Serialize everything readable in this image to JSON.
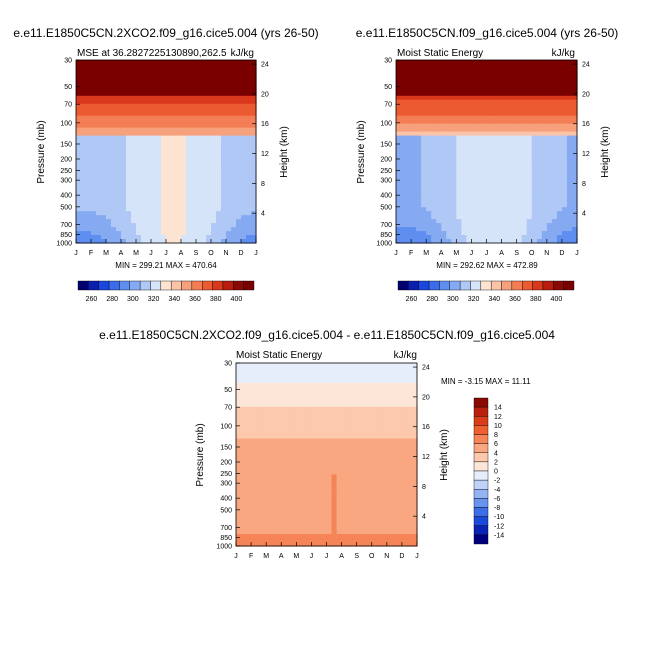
{
  "chart_data": [
    {
      "type": "heatmap",
      "title": "e.e11.E1850C5CN.2XCO2.f09_g16.cice5.004 (yrs 26-50)",
      "left_label": "MSE at 36.2827225130890,262.5",
      "right_label": "kJ/kg",
      "ylabel": "Pressure (mb)",
      "y2label": "Height (km)",
      "minmax_text": "MIN = 299.21  MAX = 470.64",
      "x_ticks": [
        "J",
        "F",
        "M",
        "A",
        "M",
        "J",
        "J",
        "A",
        "S",
        "O",
        "N",
        "D",
        "J"
      ],
      "y_ticks": [
        "30",
        "50",
        "70",
        "100",
        "150",
        "200",
        "250",
        "300",
        "400",
        "500",
        "700",
        "850",
        "1000"
      ],
      "y2_ticks": [
        "24",
        "20",
        "16",
        "12",
        "8",
        "4"
      ],
      "colorbar_labels": [
        "260",
        "280",
        "300",
        "320",
        "340",
        "360",
        "380",
        "400"
      ],
      "min": 299.21,
      "max": 470.64
    },
    {
      "type": "heatmap",
      "title": "e.e11.E1850C5CN.f09_g16.cice5.004 (yrs 26-50)",
      "left_label": "Moist Static Energy",
      "right_label": "kJ/kg",
      "ylabel": "Pressure (mb)",
      "y2label": "Height (km)",
      "minmax_text": "MIN = 292.62  MAX = 472.89",
      "x_ticks": [
        "J",
        "F",
        "M",
        "A",
        "M",
        "J",
        "J",
        "A",
        "S",
        "O",
        "N",
        "D",
        "J"
      ],
      "y_ticks": [
        "30",
        "50",
        "70",
        "100",
        "150",
        "200",
        "250",
        "300",
        "400",
        "500",
        "700",
        "850",
        "1000"
      ],
      "y2_ticks": [
        "24",
        "20",
        "16",
        "12",
        "8",
        "4"
      ],
      "colorbar_labels": [
        "260",
        "280",
        "300",
        "320",
        "340",
        "360",
        "380",
        "400"
      ],
      "min": 292.62,
      "max": 472.89
    },
    {
      "type": "heatmap",
      "title": "e.e11.E1850C5CN.2XCO2.f09_g16.cice5.004 - e.e11.E1850C5CN.f09_g16.cice5.004",
      "left_label": "Moist Static Energy",
      "right_label": "kJ/kg",
      "ylabel": "Pressure (mb)",
      "y2label": "Height (km)",
      "minmax_text": "MIN =  -3.15  MAX =  11.11",
      "x_ticks": [
        "J",
        "F",
        "M",
        "A",
        "M",
        "J",
        "J",
        "A",
        "S",
        "O",
        "N",
        "D",
        "J"
      ],
      "y_ticks": [
        "30",
        "50",
        "70",
        "100",
        "150",
        "200",
        "250",
        "300",
        "400",
        "500",
        "700",
        "850",
        "1000"
      ],
      "y2_ticks": [
        "24",
        "20",
        "16",
        "12",
        "8",
        "4"
      ],
      "colorbar_labels": [
        "14",
        "12",
        "10",
        "8",
        "6",
        "4",
        "2",
        "0",
        "-2",
        "-4",
        "-6",
        "-8",
        "-10",
        "-12",
        "-14"
      ],
      "min": -3.15,
      "max": 11.11
    }
  ],
  "colors": {
    "abs_scale": [
      "#00006e",
      "#0a1fae",
      "#1a46e0",
      "#3a6be8",
      "#5e8ef0",
      "#86aaf2",
      "#b0c8f5",
      "#d6e4fa",
      "#fde4d2",
      "#fbc4a8",
      "#f7a07c",
      "#f37e55",
      "#ec5a32",
      "#d9381c",
      "#b81c0e",
      "#8c0a05",
      "#7a0000"
    ],
    "diff_scale": [
      "#00007f",
      "#0a22b5",
      "#1a4adc",
      "#3d6ee8",
      "#6893ef",
      "#94b3f3",
      "#bfd2f7",
      "#e6eefb",
      "#fde6d8",
      "#fcc9ad",
      "#f9a780",
      "#f58457",
      "#ee6030",
      "#db3d1a",
      "#b9200d",
      "#8a0a00"
    ]
  }
}
